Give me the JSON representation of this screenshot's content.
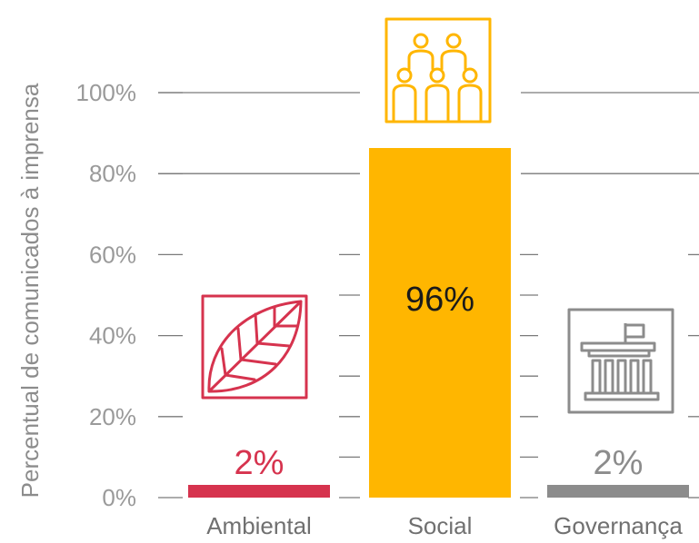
{
  "chart_data": {
    "type": "bar",
    "ylabel": "Percentual de comunicados à imprensa",
    "ylim": [
      0,
      100
    ],
    "yticks": [
      "0%",
      "20%",
      "40%",
      "60%",
      "80%",
      "100%"
    ],
    "grid": true,
    "categories": [
      "Ambiental",
      "Social",
      "Governança"
    ],
    "values": [
      2,
      96,
      2
    ],
    "value_labels": [
      "2%",
      "96%",
      "2%"
    ],
    "colors": [
      "#d6334e",
      "#ffb600",
      "#8c8c8c"
    ],
    "label_colors": [
      "#d6334e",
      "#1a1a1a",
      "#8c8c8c"
    ],
    "icons": [
      "leaf-icon",
      "people-icon",
      "building-icon"
    ]
  }
}
